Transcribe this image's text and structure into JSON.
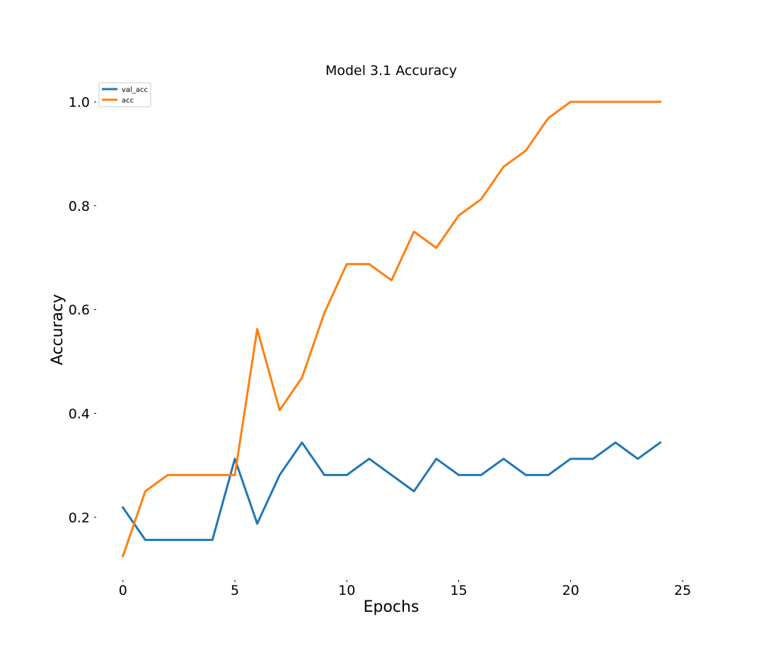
{
  "chart_data": {
    "type": "line",
    "title": "Model 3.1 Accuracy",
    "xlabel": "Epochs",
    "ylabel": "Accuracy",
    "xlim": [
      -0.75,
      25
    ],
    "ylim": [
      0.09,
      1.03
    ],
    "x_ticks": [
      0,
      5,
      10,
      15,
      20,
      25
    ],
    "y_ticks": [
      0.2,
      0.4,
      0.6,
      0.8,
      1.0
    ],
    "x_tick_labels": [
      "0",
      "5",
      "10",
      "15",
      "20",
      "25"
    ],
    "y_tick_labels": [
      "0.2",
      "0.4",
      "0.6",
      "0.8",
      "1.0"
    ],
    "grid": false,
    "legend_position": "top-left",
    "x": [
      0,
      1,
      2,
      3,
      4,
      5,
      6,
      7,
      8,
      9,
      10,
      11,
      12,
      13,
      14,
      15,
      16,
      17,
      18,
      19,
      20,
      21,
      22,
      23,
      24
    ],
    "series": [
      {
        "name": "val_acc",
        "color": "#1f77b4",
        "values": [
          0.21875,
          0.15625,
          0.15625,
          0.15625,
          0.15625,
          0.3125,
          0.1875,
          0.28125,
          0.34375,
          0.28125,
          0.28125,
          0.3125,
          0.28125,
          0.25,
          0.3125,
          0.28125,
          0.28125,
          0.3125,
          0.28125,
          0.28125,
          0.3125,
          0.3125,
          0.34375,
          0.3125,
          0.34375
        ]
      },
      {
        "name": "acc",
        "color": "#ff7f0e",
        "values": [
          0.125,
          0.25,
          0.28125,
          0.28125,
          0.28125,
          0.28125,
          0.5625,
          0.40625,
          0.46875,
          0.59375,
          0.6875,
          0.6875,
          0.65625,
          0.75,
          0.71875,
          0.78125,
          0.8125,
          0.875,
          0.90625,
          0.96875,
          1.0,
          1.0,
          1.0,
          1.0,
          1.0
        ]
      }
    ]
  }
}
